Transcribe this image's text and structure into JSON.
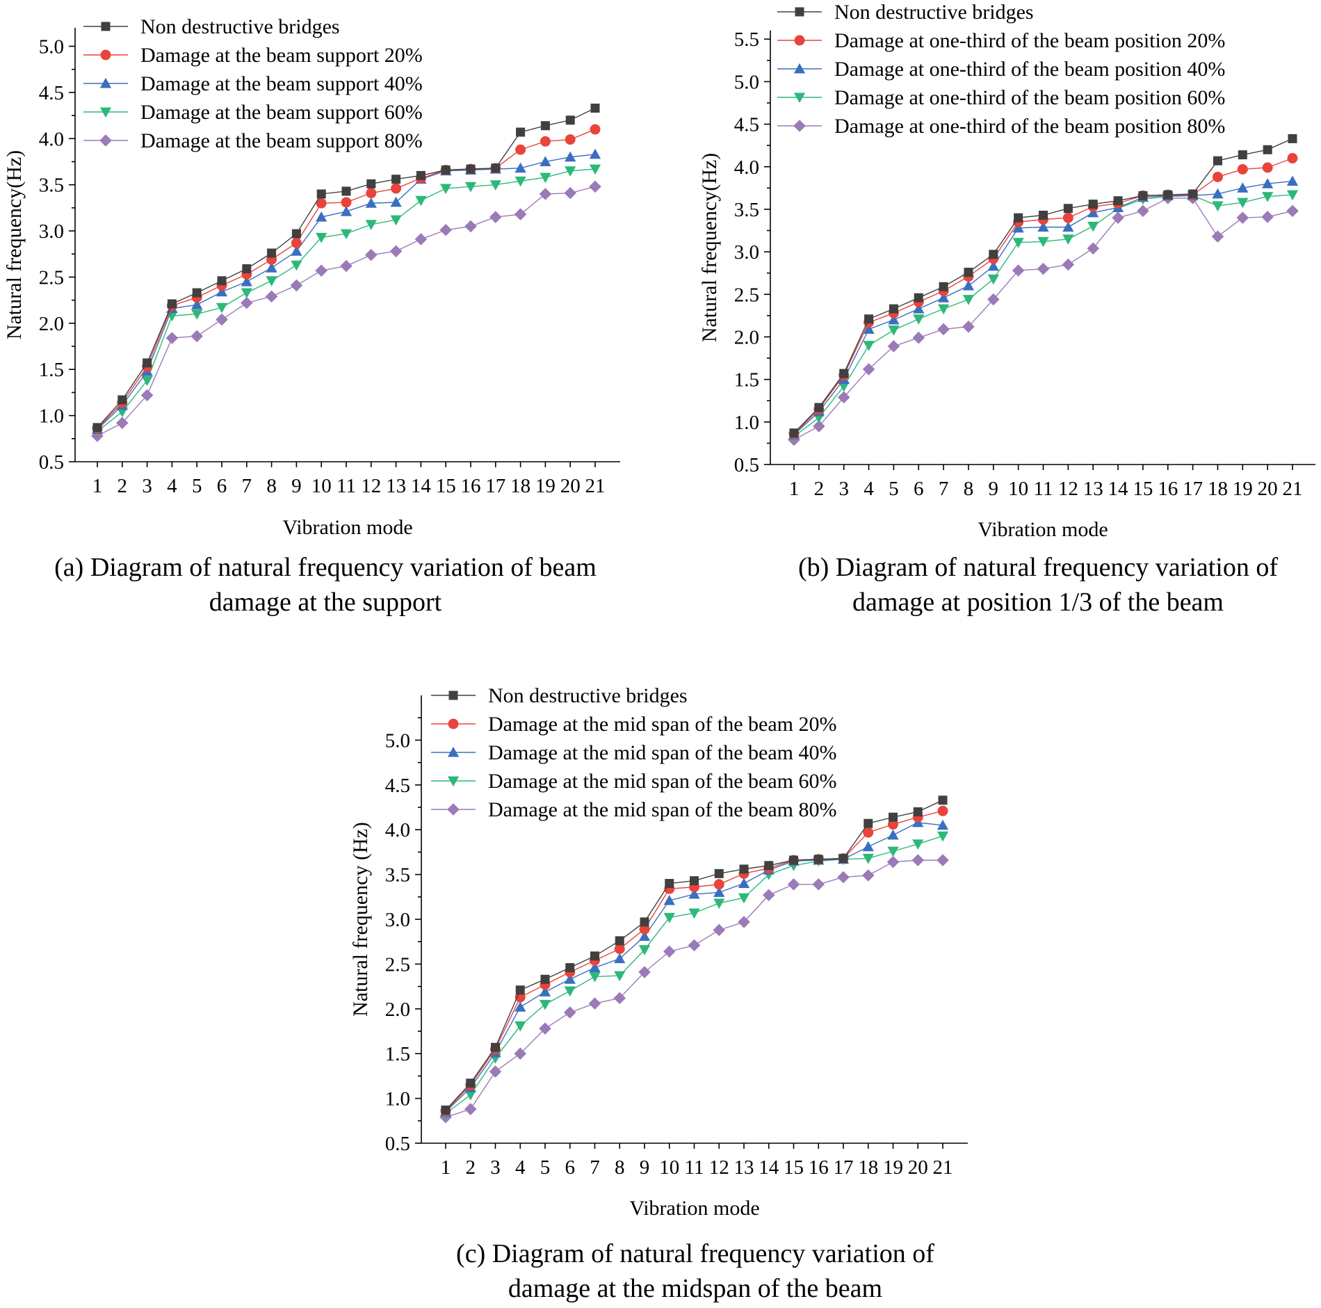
{
  "chart_data": [
    {
      "id": "a",
      "type": "line",
      "caption_line1": "(a) Diagram of natural frequency variation of beam",
      "caption_line2": "damage at the support",
      "xlabel": "Vibration mode",
      "ylabel": "Natural frequency(Hz)",
      "ylim": [
        0.5,
        5.2
      ],
      "yticks": [
        "0.5",
        "1.0",
        "1.5",
        "2.0",
        "2.5",
        "3.0",
        "3.5",
        "4.0",
        "4.5",
        "5.0"
      ],
      "categories": [
        "1",
        "2",
        "3",
        "4",
        "5",
        "6",
        "7",
        "8",
        "9",
        "10",
        "11",
        "12",
        "13",
        "14",
        "15",
        "16",
        "17",
        "18",
        "19",
        "20",
        "21"
      ],
      "legend_position": "top-left",
      "series": [
        {
          "name": "Non destructive bridges",
          "color": "#404040",
          "line_color": "#404040",
          "marker": "square",
          "values": [
            0.87,
            1.17,
            1.57,
            2.21,
            2.33,
            2.46,
            2.59,
            2.76,
            2.97,
            3.4,
            3.43,
            3.51,
            3.56,
            3.6,
            3.66,
            3.67,
            3.68,
            4.07,
            4.14,
            4.2,
            4.33
          ]
        },
        {
          "name": "Damage at the beam support 20%",
          "color": "#e8443c",
          "line_color": "#e8443c",
          "marker": "circle",
          "values": [
            0.86,
            1.14,
            1.53,
            2.19,
            2.28,
            2.41,
            2.53,
            2.69,
            2.87,
            3.3,
            3.31,
            3.41,
            3.46,
            3.57,
            3.66,
            3.67,
            3.68,
            3.88,
            3.97,
            3.99,
            4.1
          ]
        },
        {
          "name": "Damage at the beam support 40%",
          "color": "#3a6fbf",
          "line_color": "#3a6fbf",
          "marker": "triangle-up",
          "values": [
            0.85,
            1.11,
            1.48,
            2.16,
            2.2,
            2.34,
            2.45,
            2.6,
            2.78,
            3.15,
            3.21,
            3.3,
            3.31,
            3.56,
            3.65,
            3.66,
            3.67,
            3.68,
            3.75,
            3.8,
            3.83
          ]
        },
        {
          "name": "Damage at the beam support 60%",
          "color": "#2db87a",
          "line_color": "#2db87a",
          "marker": "triangle-down",
          "values": [
            0.83,
            1.04,
            1.38,
            2.08,
            2.1,
            2.17,
            2.33,
            2.46,
            2.63,
            2.93,
            2.97,
            3.07,
            3.12,
            3.33,
            3.46,
            3.48,
            3.5,
            3.54,
            3.58,
            3.65,
            3.67
          ]
        },
        {
          "name": "Damage at the beam support 80%",
          "color": "#9b7ab8",
          "line_color": "#9b7ab8",
          "marker": "diamond",
          "values": [
            0.78,
            0.92,
            1.22,
            1.84,
            1.86,
            2.04,
            2.22,
            2.29,
            2.41,
            2.57,
            2.62,
            2.74,
            2.78,
            2.91,
            3.01,
            3.05,
            3.15,
            3.18,
            3.4,
            3.41,
            3.48
          ]
        }
      ]
    },
    {
      "id": "b",
      "type": "line",
      "caption_line1": "(b) Diagram of natural frequency variation of",
      "caption_line2": "damage at position 1/3 of the beam",
      "xlabel": "Vibration mode",
      "ylabel": "Natural frequency(Hz)",
      "ylim": [
        0.5,
        5.6
      ],
      "yticks": [
        "0.5",
        "1.0",
        "1.5",
        "2.0",
        "2.5",
        "3.0",
        "3.5",
        "4.0",
        "4.5",
        "5.0",
        "5.5"
      ],
      "categories": [
        "1",
        "2",
        "3",
        "4",
        "5",
        "6",
        "7",
        "8",
        "9",
        "10",
        "11",
        "12",
        "13",
        "14",
        "15",
        "16",
        "17",
        "18",
        "19",
        "20",
        "21"
      ],
      "legend_position": "top-right",
      "series": [
        {
          "name": "Non destructive bridges",
          "color": "#404040",
          "line_color": "#404040",
          "marker": "square",
          "values": [
            0.87,
            1.17,
            1.57,
            2.21,
            2.33,
            2.46,
            2.59,
            2.76,
            2.97,
            3.4,
            3.43,
            3.51,
            3.56,
            3.6,
            3.66,
            3.67,
            3.68,
            4.07,
            4.14,
            4.2,
            4.33
          ]
        },
        {
          "name": "Damage at one-third of the beam position 20%",
          "color": "#e8443c",
          "line_color": "#e8443c",
          "marker": "circle",
          "values": [
            0.86,
            1.15,
            1.55,
            2.17,
            2.28,
            2.41,
            2.54,
            2.71,
            2.92,
            3.35,
            3.38,
            3.4,
            3.53,
            3.57,
            3.66,
            3.67,
            3.67,
            3.88,
            3.97,
            3.99,
            4.1
          ]
        },
        {
          "name": "Damage at one-third of the beam position 40%",
          "color": "#3a6fbf",
          "line_color": "#3a6fbf",
          "marker": "triangle-up",
          "values": [
            0.85,
            1.12,
            1.5,
            2.09,
            2.2,
            2.33,
            2.46,
            2.6,
            2.83,
            3.28,
            3.29,
            3.29,
            3.46,
            3.52,
            3.64,
            3.66,
            3.66,
            3.68,
            3.75,
            3.8,
            3.83
          ]
        },
        {
          "name": "Damage at one-third of the beam position 60%",
          "color": "#2db87a",
          "line_color": "#2db87a",
          "marker": "triangle-down",
          "values": [
            0.83,
            1.05,
            1.42,
            1.9,
            2.08,
            2.21,
            2.33,
            2.44,
            2.68,
            3.11,
            3.12,
            3.15,
            3.3,
            3.51,
            3.62,
            3.65,
            3.66,
            3.54,
            3.58,
            3.65,
            3.67
          ]
        },
        {
          "name": "Damage at one-third of the beam position 80%",
          "color": "#9b7ab8",
          "line_color": "#9b7ab8",
          "marker": "diamond",
          "values": [
            0.79,
            0.95,
            1.29,
            1.62,
            1.89,
            1.99,
            2.09,
            2.12,
            2.44,
            2.78,
            2.8,
            2.85,
            3.04,
            3.4,
            3.48,
            3.63,
            3.63,
            3.18,
            3.4,
            3.41,
            3.48
          ]
        }
      ]
    },
    {
      "id": "c",
      "type": "line",
      "caption_line1": "(c) Diagram of natural frequency variation of",
      "caption_line2": "damage at the midspan of the beam",
      "xlabel": "Vibration mode",
      "ylabel": "Natural frequency (Hz)",
      "ylim": [
        0.5,
        5.5
      ],
      "yticks": [
        "0.5",
        "1.0",
        "1.5",
        "2.0",
        "2.5",
        "3.0",
        "3.5",
        "4.0",
        "4.5",
        "5.0"
      ],
      "categories": [
        "1",
        "2",
        "3",
        "4",
        "5",
        "6",
        "7",
        "8",
        "9",
        "10",
        "11",
        "12",
        "13",
        "14",
        "15",
        "16",
        "17",
        "18",
        "19",
        "20",
        "21"
      ],
      "legend_position": "top-left",
      "series": [
        {
          "name": "Non destructive bridges",
          "color": "#404040",
          "line_color": "#404040",
          "marker": "square",
          "values": [
            0.87,
            1.17,
            1.57,
            2.21,
            2.33,
            2.46,
            2.59,
            2.76,
            2.97,
            3.4,
            3.43,
            3.51,
            3.56,
            3.6,
            3.66,
            3.67,
            3.68,
            4.07,
            4.14,
            4.2,
            4.33
          ]
        },
        {
          "name": "Damage at the mid span of the beam 20%",
          "color": "#e8443c",
          "line_color": "#e8443c",
          "marker": "circle",
          "values": [
            0.86,
            1.15,
            1.55,
            2.13,
            2.27,
            2.41,
            2.54,
            2.67,
            2.89,
            3.34,
            3.36,
            3.39,
            3.51,
            3.57,
            3.66,
            3.67,
            3.68,
            3.97,
            4.06,
            4.14,
            4.21
          ]
        },
        {
          "name": "Damage at the mid span of the beam 40%",
          "color": "#3a6fbf",
          "line_color": "#3a6fbf",
          "marker": "triangle-up",
          "values": [
            0.85,
            1.12,
            1.51,
            2.02,
            2.19,
            2.33,
            2.46,
            2.56,
            2.81,
            3.21,
            3.28,
            3.3,
            3.4,
            3.55,
            3.65,
            3.66,
            3.67,
            3.81,
            3.94,
            4.08,
            4.05
          ]
        },
        {
          "name": "Damage at the mid span of the beam 60%",
          "color": "#2db87a",
          "line_color": "#2db87a",
          "marker": "triangle-down",
          "values": [
            0.83,
            1.04,
            1.45,
            1.81,
            2.05,
            2.2,
            2.36,
            2.37,
            2.66,
            3.02,
            3.07,
            3.18,
            3.24,
            3.5,
            3.6,
            3.65,
            3.67,
            3.68,
            3.76,
            3.84,
            3.93
          ]
        },
        {
          "name": "Damage at the mid span of the beam 80%",
          "color": "#9b7ab8",
          "line_color": "#9b7ab8",
          "marker": "diamond",
          "values": [
            0.79,
            0.88,
            1.3,
            1.5,
            1.78,
            1.96,
            2.06,
            2.12,
            2.41,
            2.64,
            2.71,
            2.88,
            2.97,
            3.27,
            3.39,
            3.39,
            3.47,
            3.49,
            3.64,
            3.66,
            3.66
          ]
        }
      ]
    }
  ]
}
